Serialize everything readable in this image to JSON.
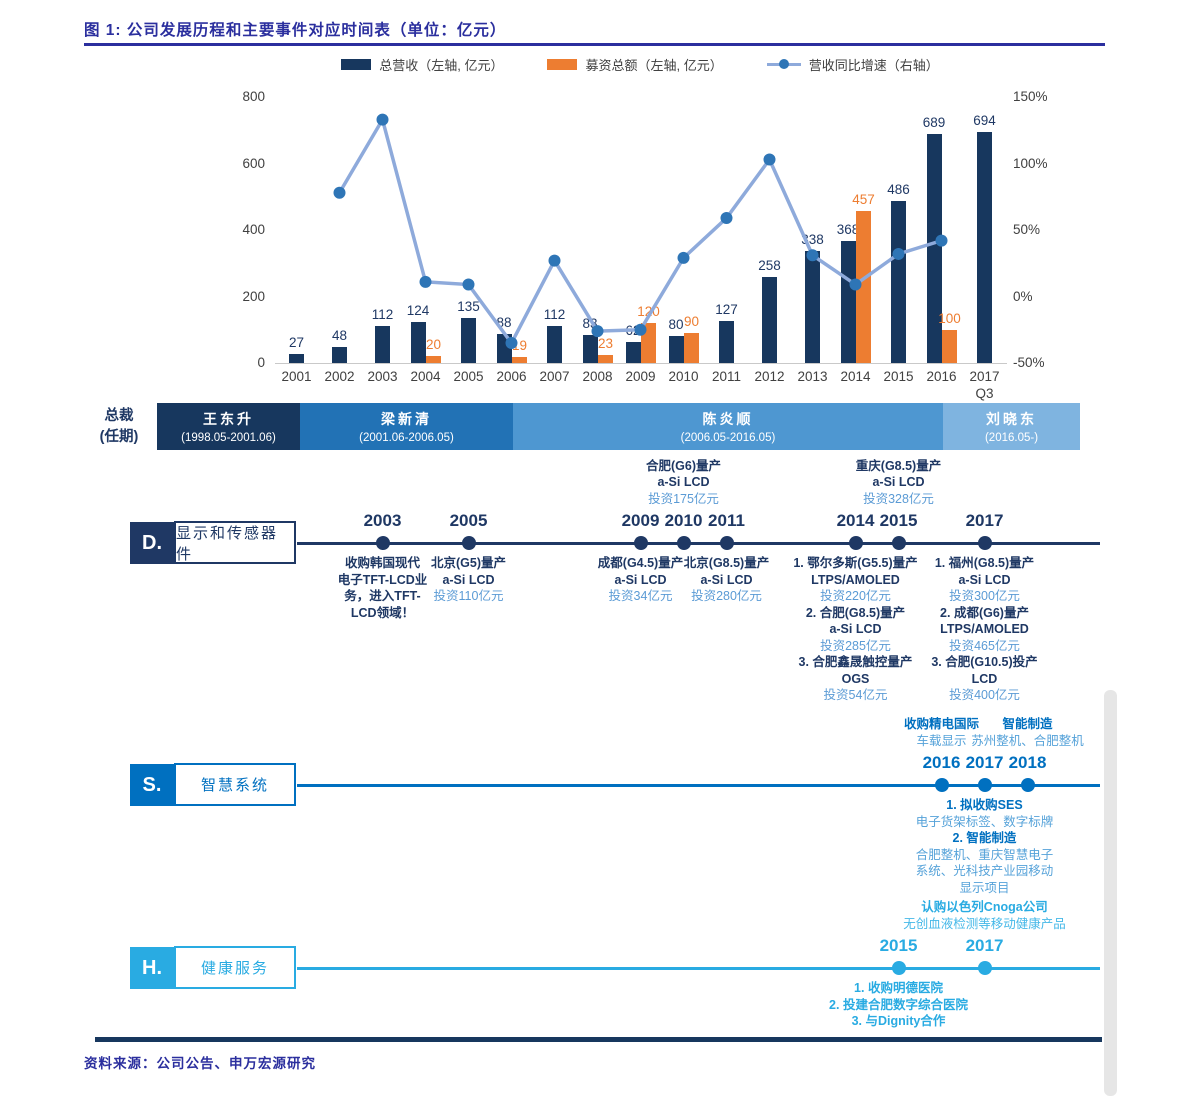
{
  "title": "图 1: 公司发展历程和主要事件对应时间表（单位：亿元）",
  "source": "资料来源：公司公告、申万宏源研究",
  "colors": {
    "title_ink": "#2B2F9E",
    "revenue_bar": "#17375E",
    "funding_bar": "#ED7D31",
    "growth_line": "#8EAADB",
    "growth_marker": "#2E75B6",
    "axis_text": "#404040",
    "bottom_divider": "#17375E"
  },
  "chart_data": {
    "type": "bar+line",
    "title": "公司发展历程和主要事件对应时间表（单位：亿元）",
    "categories": [
      "2001",
      "2002",
      "2003",
      "2004",
      "2005",
      "2006",
      "2007",
      "2008",
      "2009",
      "2010",
      "2011",
      "2012",
      "2013",
      "2014",
      "2015",
      "2016",
      "2017"
    ],
    "x_note": "Q3",
    "legend_position": "top-center",
    "grid": false,
    "left_axis": {
      "ticks": [
        0,
        200,
        400,
        600,
        800
      ],
      "min": 0,
      "max": 800
    },
    "right_axis": {
      "ticks_pct": [
        -50,
        0,
        50,
        100,
        150
      ],
      "min": -50,
      "max": 150
    },
    "series": [
      {
        "name": "总营收（左轴, 亿元）",
        "type": "bar",
        "axis": "left",
        "color": "#17375E",
        "values": [
          27,
          48,
          112,
          124,
          135,
          88,
          112,
          83,
          62,
          80,
          127,
          258,
          338,
          368,
          486,
          689,
          694
        ]
      },
      {
        "name": "募资总额（左轴, 亿元）",
        "type": "bar",
        "axis": "left",
        "color": "#ED7D31",
        "values": [
          null,
          null,
          null,
          20,
          null,
          19,
          null,
          23,
          120,
          90,
          null,
          null,
          null,
          457,
          null,
          100,
          null
        ]
      },
      {
        "name": "营收同比增速（右轴）",
        "type": "line",
        "axis": "right",
        "color": "#8EAADB",
        "marker_color": "#2E75B6",
        "values_pct": [
          null,
          78,
          133,
          11,
          9,
          -35,
          27,
          -26,
          -25,
          29,
          59,
          103,
          31,
          9,
          32,
          42,
          null
        ]
      }
    ]
  },
  "presidents": {
    "row_label_lines": [
      "总裁",
      "(任期)"
    ],
    "terms": [
      {
        "name": "王东升",
        "term": "(1998.05-2001.06)",
        "color": "#17375E"
      },
      {
        "name": "梁新清",
        "term": "(2001.06-2006.05)",
        "color": "#2272B5"
      },
      {
        "name": "陈炎顺",
        "term": "(2006.05-2016.05)",
        "color": "#4E97D1"
      },
      {
        "name": "刘晓东",
        "term": "(2016.05-)",
        "color": "#7FB4E0"
      }
    ]
  },
  "timelines": [
    {
      "letter": "D.",
      "label": "显示和传感器件",
      "theme": {
        "dark": "#1F3864",
        "light": "#5B9BD5"
      },
      "events": [
        {
          "year": 2003,
          "below": [
            [
              "收购韩国现代",
              "b"
            ],
            [
              "电子TFT-LCD业",
              "b"
            ],
            [
              "务，进入TFT-",
              "b"
            ],
            [
              "LCD领域！",
              "b"
            ]
          ]
        },
        {
          "year": 2005,
          "below": [
            [
              "北京(G5)量产",
              "b"
            ],
            [
              "a-Si LCD",
              "b"
            ],
            [
              "投资110亿元",
              "l"
            ]
          ]
        },
        {
          "year": 2009,
          "below": [
            [
              "成都(G4.5)量产",
              "b"
            ],
            [
              "a-Si LCD",
              "b"
            ],
            [
              "投资34亿元",
              "l"
            ]
          ]
        },
        {
          "year": 2010,
          "above": [
            [
              "合肥(G6)量产",
              "b"
            ],
            [
              "a-Si LCD",
              "b"
            ],
            [
              "投资175亿元",
              "l"
            ]
          ]
        },
        {
          "year": 2011,
          "below": [
            [
              "北京(G8.5)量产",
              "b"
            ],
            [
              "a-Si LCD",
              "b"
            ],
            [
              "投资280亿元",
              "l"
            ]
          ]
        },
        {
          "year": 2014,
          "below": [
            [
              "1. 鄂尔多斯(G5.5)量产",
              "b"
            ],
            [
              "LTPS/AMOLED",
              "b"
            ],
            [
              "投资220亿元",
              "l"
            ],
            [
              "2. 合肥(G8.5)量产",
              "b"
            ],
            [
              "a-Si LCD",
              "b"
            ],
            [
              "投资285亿元",
              "l"
            ],
            [
              "3. 合肥鑫晟触控量产",
              "b"
            ],
            [
              "OGS",
              "b"
            ],
            [
              "投资54亿元",
              "l"
            ]
          ]
        },
        {
          "year": 2015,
          "above": [
            [
              "重庆(G8.5)量产",
              "b"
            ],
            [
              "a-Si LCD",
              "b"
            ],
            [
              "投资328亿元",
              "l"
            ]
          ]
        },
        {
          "year": 2017,
          "below": [
            [
              "1. 福州(G8.5)量产",
              "b"
            ],
            [
              "a-Si LCD",
              "b"
            ],
            [
              "投资300亿元",
              "l"
            ],
            [
              "2. 成都(G6)量产",
              "b"
            ],
            [
              "LTPS/AMOLED",
              "b"
            ],
            [
              "投资465亿元",
              "l"
            ],
            [
              "3. 合肥(G10.5)投产",
              "b"
            ],
            [
              "LCD",
              "b"
            ],
            [
              "投资400亿元",
              "l"
            ]
          ]
        }
      ]
    },
    {
      "letter": "S.",
      "label": "智慧系统",
      "theme": {
        "dark": "#0070C0",
        "light": "#55A2D9"
      },
      "events": [
        {
          "year": 2016,
          "above": [
            [
              "收购精电国际",
              "b"
            ],
            [
              "车载显示",
              "l"
            ]
          ]
        },
        {
          "year": 2017,
          "below": [
            [
              "1. 拟收购SES",
              "b"
            ],
            [
              "电子货架标签、数字标牌",
              "l"
            ],
            [
              "2. 智能制造",
              "b"
            ],
            [
              "合肥整机、重庆智慧电子",
              "l"
            ],
            [
              "系统、光科技产业园移动",
              "l"
            ],
            [
              "显示项目",
              "l"
            ]
          ]
        },
        {
          "year": 2018,
          "above": [
            [
              "智能制造",
              "b"
            ],
            [
              "苏州整机、合肥整机",
              "l"
            ]
          ]
        }
      ]
    },
    {
      "letter": "H.",
      "label": "健康服务",
      "theme": {
        "dark": "#29ABE2",
        "light": "#45B8E8"
      },
      "events": [
        {
          "year": 2015,
          "below": [
            [
              "1. 收购明德医院",
              "b"
            ],
            [
              "2. 投建合肥数字综合医院",
              "b"
            ],
            [
              "3. 与Dignity合作",
              "b"
            ]
          ]
        },
        {
          "year": 2017,
          "above": [
            [
              "认购以色列Cnoga公司",
              "b"
            ],
            [
              "无创血液检测等移动健康产品",
              "l"
            ]
          ]
        }
      ]
    }
  ]
}
